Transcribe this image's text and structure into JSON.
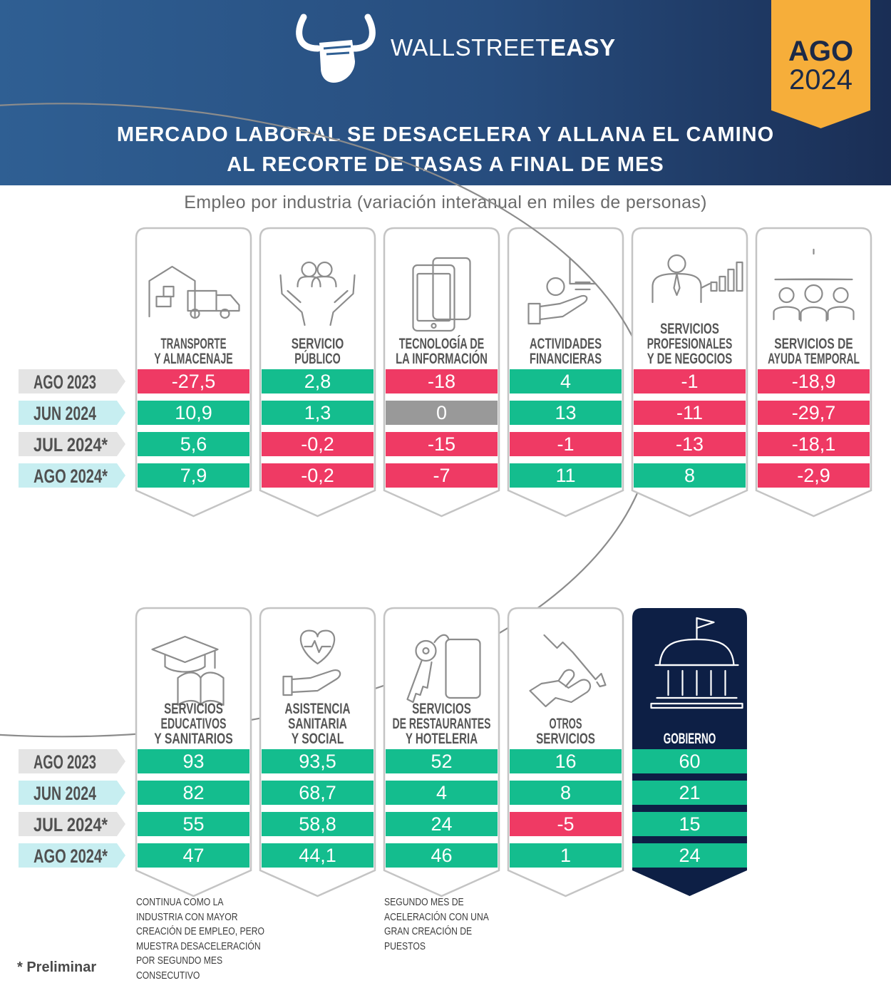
{
  "header": {
    "brand_light": "WALLSTREET",
    "brand_bold": "EASY",
    "badge_month": "AGO",
    "badge_year": "2024",
    "title_line1": "MERCADO LABORAL SE DESACELERA Y ALLANA EL CAMINO",
    "title_line2": "AL RECORTE DE TASAS A FINAL DE MES"
  },
  "colors": {
    "positive": "#14bd8e",
    "negative": "#ef3a64",
    "zero": "#999999",
    "navy": "#0d1f45",
    "row_label_gray": "#e4e4e4",
    "row_label_blue": "#c7eef1"
  },
  "chart_data": {
    "type": "table",
    "title": "Empleo por industria (variación interanual en miles de personas)",
    "periods": [
      "AGO 2023",
      "JUN 2024",
      "JUL 2024*",
      "AGO 2024*"
    ],
    "period_styles": [
      "gray",
      "blue",
      "gray",
      "blue"
    ],
    "groups": [
      {
        "industries": [
          {
            "name_lines": [
              "TRANSPORTE",
              "Y ALMACENAJE"
            ],
            "icon": "warehouse-truck-icon",
            "values": [
              "-27,5",
              "10,9",
              "5,6",
              "7,9"
            ]
          },
          {
            "name_lines": [
              "SERVICIO",
              "PÚBLICO"
            ],
            "icon": "hands-people-icon",
            "values": [
              "2,8",
              "1,3",
              "-0,2",
              "-0,2"
            ]
          },
          {
            "name_lines": [
              "TECNOLOGÍA DE",
              "LA INFORMACIÓN"
            ],
            "icon": "devices-icon",
            "values": [
              "-18",
              "0",
              "-15",
              "-7"
            ]
          },
          {
            "name_lines": [
              "ACTIVIDADES",
              "FINANCIERAS"
            ],
            "icon": "finance-hand-icon",
            "values": [
              "4",
              "13",
              "-1",
              "11"
            ]
          },
          {
            "name_lines": [
              "SERVICIOS",
              "PROFESIONALES",
              "Y DE NEGOCIOS"
            ],
            "icon": "businessman-chart-icon",
            "values": [
              "-1",
              "-11",
              "-13",
              "8"
            ]
          },
          {
            "name_lines": [
              "SERVICIOS DE",
              "AYUDA TEMPORAL"
            ],
            "icon": "umbrella-people-icon",
            "values": [
              "-18,9",
              "-29,7",
              "-18,1",
              "-2,9"
            ]
          }
        ]
      },
      {
        "industries": [
          {
            "name_lines": [
              "SERVICIOS",
              "EDUCATIVOS",
              "Y SANITARIOS"
            ],
            "icon": "graduation-book-icon",
            "values": [
              "93",
              "82",
              "55",
              "47"
            ]
          },
          {
            "name_lines": [
              "ASISTENCIA",
              "SANITARIA",
              "Y SOCIAL"
            ],
            "icon": "heart-hand-icon",
            "values": [
              "93,5",
              "68,7",
              "58,8",
              "44,1"
            ]
          },
          {
            "name_lines": [
              "SERVICIOS",
              "DE RESTAURANTES",
              "Y HOTELERIA"
            ],
            "icon": "key-card-icon",
            "values": [
              "52",
              "4",
              "24",
              "46"
            ]
          },
          {
            "name_lines": [
              "OTROS",
              "SERVICIOS"
            ],
            "icon": "wrench-hand-icon",
            "values": [
              "16",
              "8",
              "-5",
              "1"
            ]
          },
          {
            "name_lines": [
              "GOBIERNO"
            ],
            "icon": "government-building-icon",
            "highlight": true,
            "values": [
              "60",
              "21",
              "15",
              "24"
            ]
          }
        ]
      }
    ]
  },
  "notes": {
    "education": "CONTINUA COMO LA\nINDUSTRIA CON MAYOR\nCREACIÓN DE EMPLEO, PERO\nMUESTRA DESACELERACIÓN\nPOR SEGUNDO MES\nCONSECUTIVO",
    "restaurants": "SEGUNDO MES DE\nACELERACIÓN CON UNA\nGRAN CREACIÓN DE\nPUESTOS"
  },
  "footnote": "* Preliminar"
}
